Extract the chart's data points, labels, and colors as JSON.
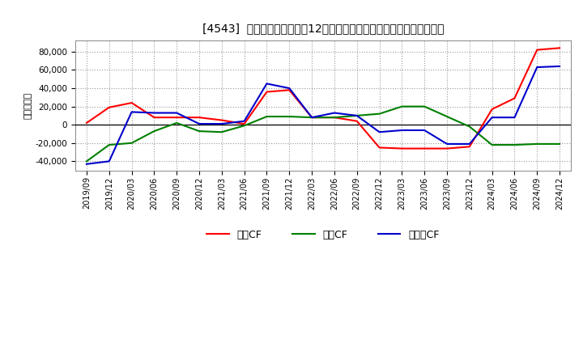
{
  "title": "[4543]  キャッシュフローの12か月移動合計の対前年同期増減額の推移",
  "ylabel": "（百万円）",
  "background_color": "#ffffff",
  "plot_bg_color": "#ffffff",
  "grid_color": "#999999",
  "x_labels": [
    "2019/09",
    "2019/12",
    "2020/03",
    "2020/06",
    "2020/09",
    "2020/12",
    "2021/03",
    "2021/06",
    "2021/09",
    "2021/12",
    "2022/03",
    "2022/06",
    "2022/09",
    "2022/12",
    "2023/03",
    "2023/06",
    "2023/09",
    "2023/12",
    "2024/03",
    "2024/06",
    "2024/09",
    "2024/12"
  ],
  "eigyo_cf": [
    2000,
    19000,
    24000,
    8000,
    8000,
    8000,
    5000,
    1000,
    36000,
    38000,
    8000,
    8000,
    4000,
    -25000,
    -26000,
    -26000,
    -26000,
    -24000,
    17000,
    29000,
    82000,
    84000
  ],
  "toshi_cf": [
    -40000,
    -22000,
    -20000,
    -7000,
    2000,
    -7000,
    -8000,
    -1000,
    9000,
    9000,
    8000,
    8000,
    10000,
    12000,
    20000,
    20000,
    9000,
    -2000,
    -22000,
    -22000,
    -21000,
    -21000
  ],
  "free_cf": [
    -43000,
    -40000,
    14000,
    13000,
    13000,
    1000,
    1000,
    4000,
    45000,
    40000,
    8000,
    13000,
    10000,
    -8000,
    -6000,
    -6000,
    -21000,
    -21000,
    8000,
    8000,
    63000,
    64000
  ],
  "ylim": [
    -50000,
    92000
  ],
  "yticks": [
    -40000,
    -20000,
    0,
    20000,
    40000,
    60000,
    80000
  ],
  "eigyo_color": "#ff0000",
  "toshi_color": "#008000",
  "free_color": "#0000cc",
  "line_width": 1.5,
  "eigyo_label": "営業CF",
  "toshi_label": "投資CF",
  "free_label": "フリーCF"
}
